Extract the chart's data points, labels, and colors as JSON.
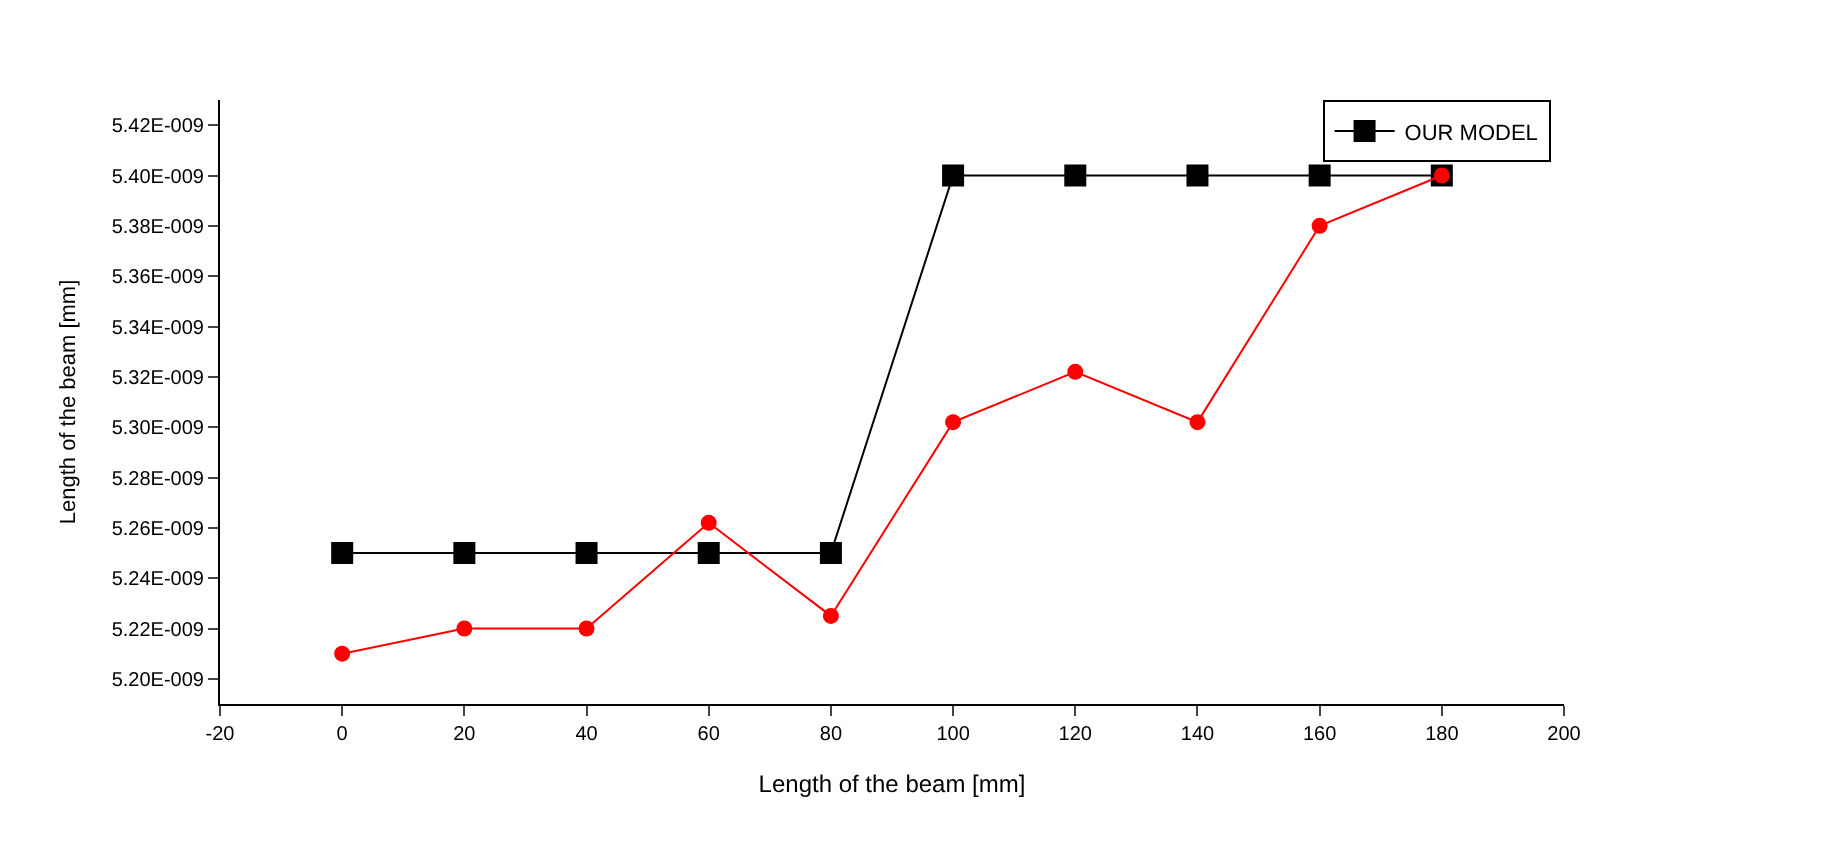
{
  "chart_data": {
    "type": "line",
    "xlabel": "Length of the beam [mm]",
    "ylabel": "Length of the beam [mm]",
    "x": [
      0,
      20,
      40,
      60,
      80,
      100,
      120,
      140,
      160,
      180
    ],
    "series": [
      {
        "name": "OUR MODEL",
        "color": "#000000",
        "marker": "square",
        "values": [
          5.25e-09,
          5.25e-09,
          5.25e-09,
          5.25e-09,
          5.25e-09,
          5.4e-09,
          5.4e-09,
          5.4e-09,
          5.4e-09,
          5.4e-09
        ]
      },
      {
        "color": "#ff0000",
        "marker": "circle",
        "values": [
          5.21e-09,
          5.22e-09,
          5.22e-09,
          5.262e-09,
          5.225e-09,
          5.302e-09,
          5.322e-09,
          5.302e-09,
          5.38e-09,
          5.4e-09
        ]
      }
    ],
    "xlim": [
      -20,
      200
    ],
    "xticks": [
      -20,
      0,
      20,
      40,
      60,
      80,
      100,
      120,
      140,
      160,
      180,
      200
    ],
    "ylim": [
      5.19e-09,
      5.43e-09
    ],
    "yticks": [
      {
        "value": 5.2e-09,
        "label": "5.20E-009"
      },
      {
        "value": 5.22e-09,
        "label": "5.22E-009"
      },
      {
        "value": 5.24e-09,
        "label": "5.24E-009"
      },
      {
        "value": 5.26e-09,
        "label": "5.26E-009"
      },
      {
        "value": 5.28e-09,
        "label": "5.28E-009"
      },
      {
        "value": 5.3e-09,
        "label": "5.30E-009"
      },
      {
        "value": 5.32e-09,
        "label": "5.32E-009"
      },
      {
        "value": 5.34e-09,
        "label": "5.34E-009"
      },
      {
        "value": 5.36e-09,
        "label": "5.36E-009"
      },
      {
        "value": 5.38e-09,
        "label": "5.38E-009"
      },
      {
        "value": 5.4e-09,
        "label": "5.40E-009"
      },
      {
        "value": 5.42e-09,
        "label": "5.42E-009"
      }
    ],
    "legend": "top right",
    "line_style": "solid"
  }
}
